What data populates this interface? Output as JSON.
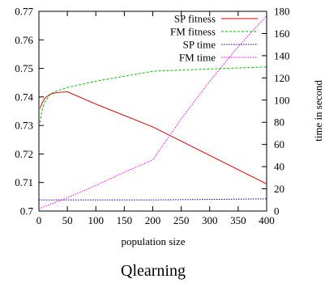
{
  "caption": "Qlearning",
  "chart_data": {
    "type": "line",
    "xlabel": "population size",
    "ylabel": "",
    "y2label": "time in second",
    "xlim": [
      0,
      400
    ],
    "ylim": [
      0.7,
      0.77
    ],
    "y2lim": [
      0,
      180
    ],
    "x_ticks": [
      "0",
      "50",
      "100",
      "150",
      "200",
      "250",
      "300",
      "350",
      "400"
    ],
    "y_ticks": [
      "0.7",
      "0.71",
      "0.72",
      "0.73",
      "0.74",
      "0.75",
      "0.76",
      "0.77"
    ],
    "y2_ticks": [
      "0",
      "20",
      "40",
      "60",
      "80",
      "100",
      "120",
      "140",
      "160",
      "180"
    ],
    "legend_position": "top-right",
    "grid": false,
    "series": [
      {
        "name": "SP fitness",
        "axis": "left",
        "color": "#e00000",
        "dash": "solid",
        "x": [
          2,
          5,
          10,
          20,
          30,
          50,
          100,
          200,
          300,
          400
        ],
        "y": [
          0.736,
          0.7375,
          0.7395,
          0.741,
          0.7415,
          0.7418,
          0.7375,
          0.7295,
          0.7195,
          0.7095
        ]
      },
      {
        "name": "FM fitness",
        "axis": "left",
        "color": "#00c000",
        "dash": "dashed",
        "x": [
          2,
          5,
          10,
          20,
          30,
          50,
          100,
          200,
          300,
          400
        ],
        "y": [
          0.731,
          0.735,
          0.738,
          0.741,
          0.742,
          0.7433,
          0.7455,
          0.749,
          0.7498,
          0.7505
        ]
      },
      {
        "name": "SP time",
        "axis": "right",
        "color": "#0000a0",
        "dash": "dotted",
        "x": [
          0,
          100,
          200,
          300,
          400
        ],
        "y": [
          10,
          10,
          10,
          10.5,
          11
        ]
      },
      {
        "name": "FM time",
        "axis": "right",
        "color": "#ff00ff",
        "dash": "dotted",
        "x": [
          0,
          50,
          100,
          150,
          200,
          250,
          300,
          350,
          400
        ],
        "y": [
          2,
          12,
          23,
          35,
          46,
          83,
          117,
          148,
          176
        ]
      }
    ]
  }
}
